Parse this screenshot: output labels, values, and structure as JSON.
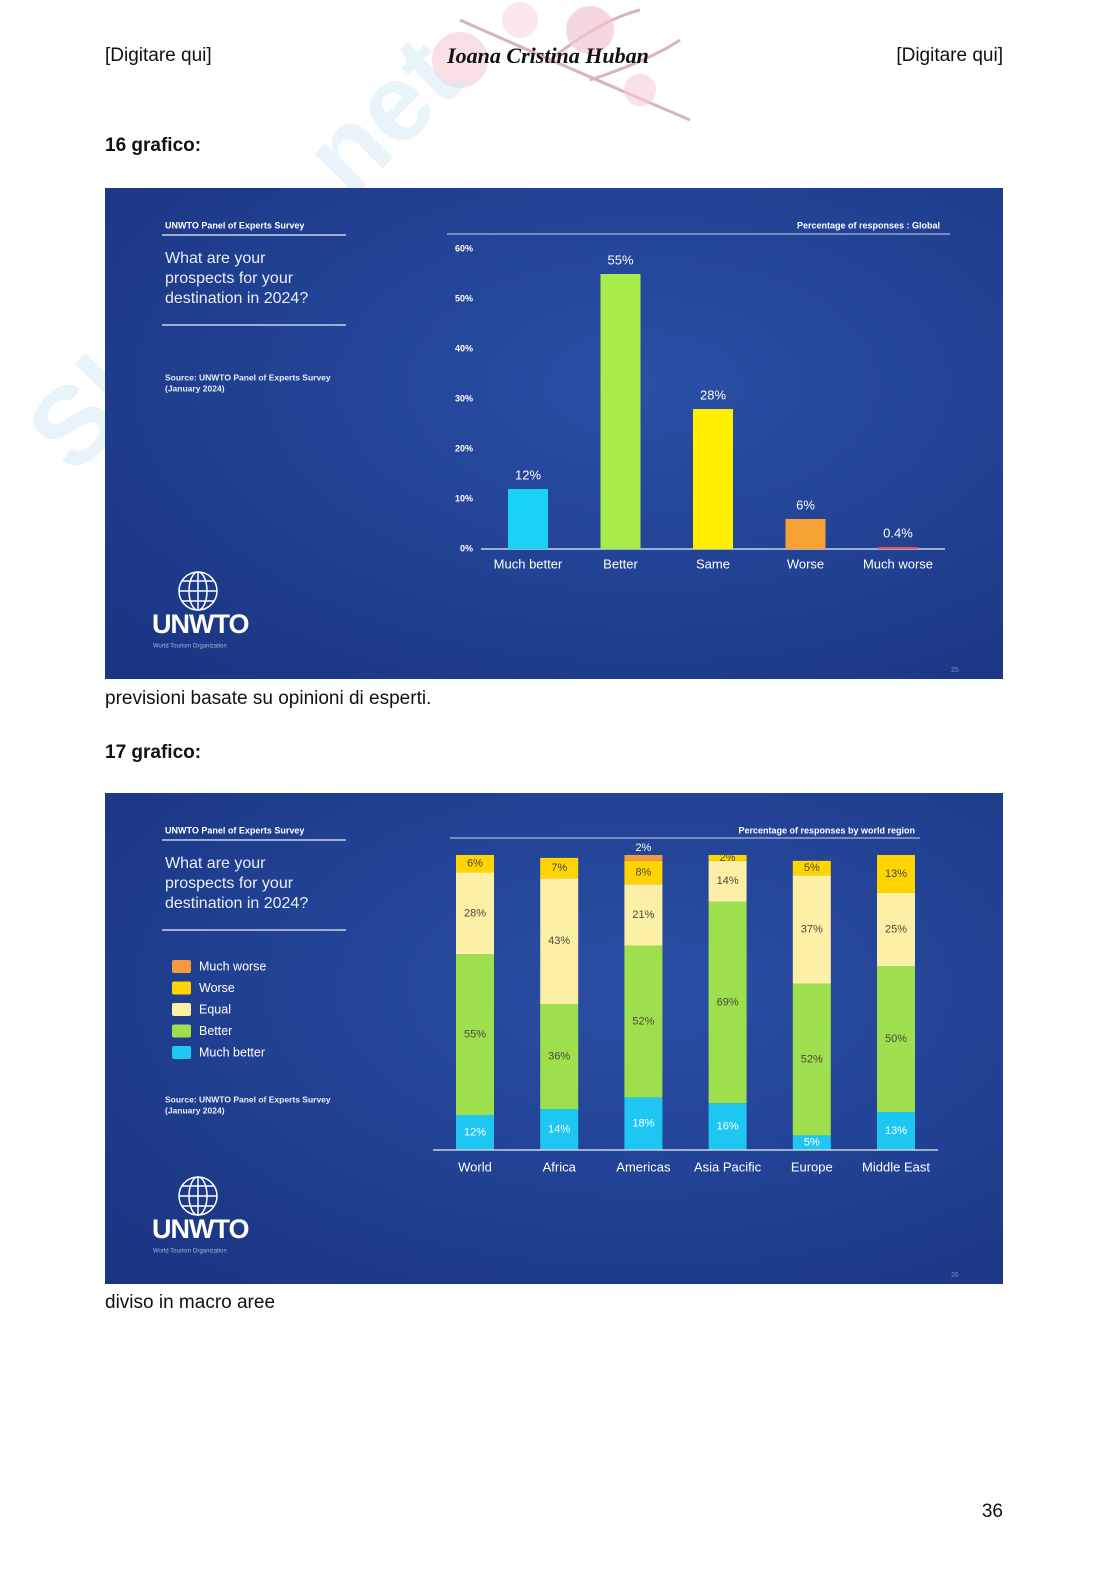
{
  "header": {
    "left": "[Digitare qui]",
    "center": "Ioana Cristina Huban",
    "right": "[Digitare qui]"
  },
  "watermark": "Skuola.net",
  "sections": [
    {
      "heading": "16 grafico:",
      "caption": "previsioni basate su opinioni di esperti.",
      "slide": {
        "survey": "UNWTO Panel of Experts Survey",
        "question": [
          "What are your",
          "prospects for your",
          "destination in 2024?"
        ],
        "source": [
          "Source: UNWTO Panel of Experts Survey",
          "(January 2024)"
        ],
        "logo": "UNWTO",
        "logo_subtitle": "World Tourism Organization",
        "slide_number": "25",
        "chart_data": {
          "type": "bar",
          "subtitle": "Percentage of responses : Global",
          "categories": [
            "Much better",
            "Better",
            "Same",
            "Worse",
            "Much worse"
          ],
          "values": [
            12,
            55,
            28,
            6,
            0.4
          ],
          "value_labels": [
            "12%",
            "55%",
            "28%",
            "6%",
            "0.4%"
          ],
          "colors": [
            "#19d2f5",
            "#a8ec4a",
            "#ffee00",
            "#f7a234",
            "#e8534a"
          ],
          "ylim": [
            0,
            60
          ],
          "yticks": [
            {
              "value": 0,
              "label": "0%"
            },
            {
              "value": 10,
              "label": "10%"
            },
            {
              "value": 20,
              "label": "20%"
            },
            {
              "value": 30,
              "label": "30%"
            },
            {
              "value": 40,
              "label": "40%"
            },
            {
              "value": 50,
              "label": "50%"
            },
            {
              "value": 60,
              "label": "60%"
            }
          ]
        }
      }
    },
    {
      "heading": "17 grafico:",
      "caption": "diviso in macro aree",
      "slide": {
        "survey": "UNWTO Panel of Experts Survey",
        "question": [
          "What are your",
          "prospects for your",
          "destination in 2024?"
        ],
        "source": [
          "Source: UNWTO Panel of Experts Survey",
          "(January 2024)"
        ],
        "logo": "UNWTO",
        "logo_subtitle": "World Tourism Organization",
        "slide_number": "26",
        "chart_data": {
          "type": "stacked_bar",
          "subtitle": "Percentage of responses by world region",
          "categories": [
            "World",
            "Africa",
            "Americas",
            "Asia Pacific",
            "Europe",
            "Middle East"
          ],
          "series": [
            {
              "name": "Much better",
              "color": "#1ec6f2",
              "values": [
                12,
                14,
                18,
                16,
                5,
                13
              ],
              "value_labels": [
                "12%",
                "14%",
                "18%",
                "16%",
                "5%",
                "13%"
              ]
            },
            {
              "name": "Better",
              "color": "#9ddf4c",
              "values": [
                55,
                36,
                52,
                69,
                52,
                50
              ],
              "value_labels": [
                "55%",
                "36%",
                "52%",
                "69%",
                "52%",
                "50%"
              ]
            },
            {
              "name": "Equal",
              "color": "#fcefa6",
              "values": [
                28,
                43,
                21,
                14,
                37,
                25
              ],
              "value_labels": [
                "28%",
                "43%",
                "21%",
                "14%",
                "37%",
                "25%"
              ]
            },
            {
              "name": "Worse",
              "color": "#ffd400",
              "values": [
                6,
                7,
                8,
                2,
                5,
                13
              ],
              "value_labels": [
                "6%",
                "7%",
                "8%",
                "2%",
                "5%",
                "13%"
              ]
            },
            {
              "name": "Much worse",
              "color": "#f39a3c",
              "values": [
                0,
                0,
                2,
                0,
                0,
                0
              ],
              "value_labels": [
                null,
                null,
                "2%",
                null,
                null,
                null
              ]
            }
          ]
        }
      }
    }
  ],
  "page_number": 36
}
